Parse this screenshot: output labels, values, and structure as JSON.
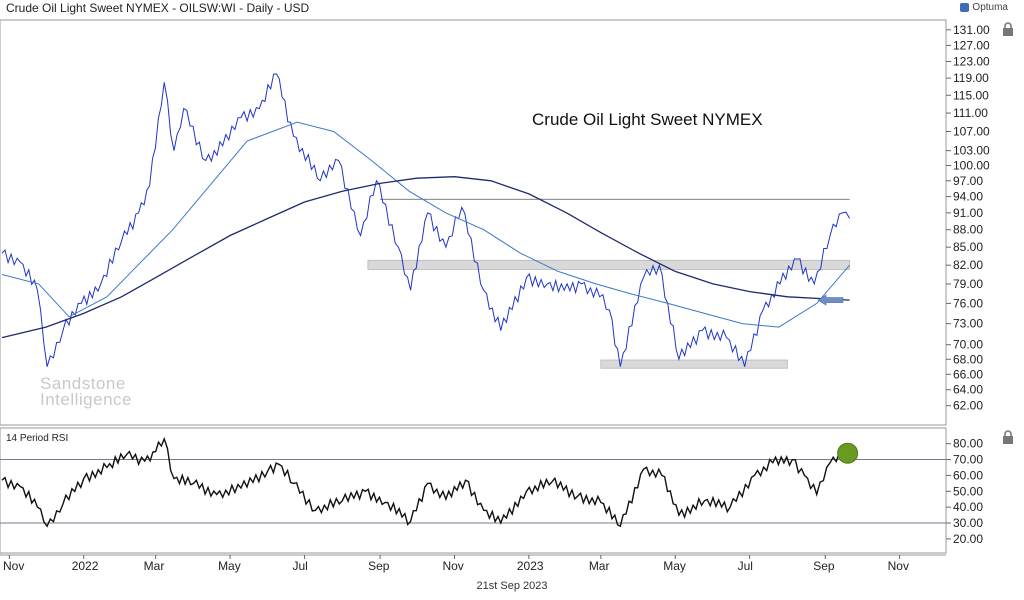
{
  "header": {
    "title": "Crude Oil Light Sweet NYMEX - OILSW:WI - Daily - USD",
    "brand": "Optuma"
  },
  "watermark": {
    "line1": "Sandstone",
    "line2": "Intelligence"
  },
  "footer": {
    "date": "21st Sep 2023"
  },
  "colors": {
    "price": "#1f35c8",
    "ma_fast": "#3d78c9",
    "ma_slow": "#1f2a6e",
    "zone": "#d9d9d9",
    "rsi": "#111111",
    "rsi_marker": "#6a9a1f",
    "arrow": "#6f8fc3"
  },
  "chart_data": [
    {
      "type": "line",
      "title": "Crude Oil Light Sweet NYMEX",
      "yaxis": {
        "range": [
          60.5,
          132
        ],
        "scale": "log",
        "ticks": [
          131,
          127,
          123,
          119,
          115,
          111,
          107,
          103,
          100,
          97,
          94,
          91,
          88,
          85,
          82,
          79,
          76,
          73,
          70,
          68,
          66,
          64,
          62
        ],
        "tick_labels": [
          "131.00",
          "127.00",
          "123.00",
          "119.00",
          "115.00",
          "111.00",
          "107.00",
          "103.00",
          "100.00",
          "97.00",
          "94.00",
          "91.00",
          "88.00",
          "85.00",
          "82.00",
          "79.00",
          "76.00",
          "73.00",
          "70.00",
          "68.00",
          "66.00",
          "64.00",
          "62.00"
        ]
      },
      "xaxis": {
        "labels": [
          "Nov",
          "2022",
          "Mar",
          "May",
          "Jul",
          "Sep",
          "Nov",
          "2023",
          "Mar",
          "May",
          "Jul",
          "Sep",
          "Nov"
        ],
        "label_dates": [
          "2021-11-01",
          "2022-01-01",
          "2022-03-01",
          "2022-05-01",
          "2022-07-01",
          "2022-09-01",
          "2022-11-01",
          "2023-01-01",
          "2023-03-01",
          "2023-05-01",
          "2023-07-01",
          "2023-09-01",
          "2023-11-01"
        ]
      },
      "series": [
        {
          "role": "price",
          "x": [
            "2021-10-26",
            "2021-11-10",
            "2021-11-24",
            "2021-12-02",
            "2021-12-15",
            "2021-12-30",
            "2022-01-15",
            "2022-02-01",
            "2022-02-15",
            "2022-02-24",
            "2022-03-08",
            "2022-03-16",
            "2022-03-24",
            "2022-04-11",
            "2022-04-25",
            "2022-05-10",
            "2022-05-25",
            "2022-06-08",
            "2022-06-22",
            "2022-07-14",
            "2022-07-29",
            "2022-08-16",
            "2022-08-29",
            "2022-09-16",
            "2022-09-26",
            "2022-10-10",
            "2022-10-25",
            "2022-11-07",
            "2022-11-25",
            "2022-12-09",
            "2022-12-30",
            "2023-01-16",
            "2023-01-30",
            "2023-02-13",
            "2023-02-28",
            "2023-03-08",
            "2023-03-17",
            "2023-04-05",
            "2023-04-18",
            "2023-05-04",
            "2023-05-23",
            "2023-06-12",
            "2023-06-27",
            "2023-07-12",
            "2023-07-26",
            "2023-08-09",
            "2023-08-23",
            "2023-09-05",
            "2023-09-15",
            "2023-09-21"
          ],
          "values": [
            84,
            82.5,
            78,
            67,
            72,
            76,
            79,
            86,
            91,
            96,
            118,
            103,
            112,
            101,
            104,
            110,
            112,
            120,
            106,
            97,
            101,
            87,
            97,
            85,
            78,
            91,
            85,
            92,
            78,
            72,
            80,
            79,
            78,
            79,
            77,
            75,
            67,
            80,
            82,
            68,
            72,
            71,
            67,
            75,
            79,
            83,
            79,
            87,
            91,
            90
          ]
        },
        {
          "role": "moving-average-short",
          "x": [
            "2021-10-26",
            "2021-11-25",
            "2021-12-20",
            "2022-01-20",
            "2022-03-15",
            "2022-05-15",
            "2022-06-25",
            "2022-07-25",
            "2022-08-25",
            "2022-09-25",
            "2022-10-25",
            "2022-11-25",
            "2022-12-25",
            "2023-01-25",
            "2023-02-25",
            "2023-03-25",
            "2023-04-25",
            "2023-05-25",
            "2023-06-25",
            "2023-07-25",
            "2023-08-25",
            "2023-09-21"
          ],
          "values": [
            80.5,
            79,
            74,
            77,
            88,
            105,
            109,
            107,
            101,
            95,
            91,
            88,
            84,
            81,
            79,
            77.5,
            76,
            74.5,
            73,
            72.5,
            76,
            82
          ]
        },
        {
          "role": "moving-average-long",
          "x": [
            "2021-10-26",
            "2021-12-01",
            "2022-01-01",
            "2022-02-01",
            "2022-03-01",
            "2022-04-01",
            "2022-05-01",
            "2022-06-01",
            "2022-07-01",
            "2022-08-01",
            "2022-09-01",
            "2022-10-01",
            "2022-11-01",
            "2022-12-01",
            "2023-01-01",
            "2023-02-01",
            "2023-03-01",
            "2023-04-01",
            "2023-05-01",
            "2023-06-01",
            "2023-07-01",
            "2023-08-01",
            "2023-09-21"
          ],
          "values": [
            71,
            72.5,
            74.5,
            77,
            80,
            83.5,
            87,
            90,
            93,
            95,
            96.5,
            97.5,
            97.8,
            97,
            94.5,
            91,
            87.5,
            84,
            81,
            79,
            77.8,
            77,
            76.5
          ]
        }
      ],
      "annotations": {
        "resistance_line": {
          "value": 93.5,
          "from": "2022-09-01",
          "to": "2023-09-21"
        },
        "zones": [
          {
            "low": 81.3,
            "high": 82.8,
            "from": "2022-08-22",
            "to": "2023-09-21"
          },
          {
            "low": 66.8,
            "high": 67.9,
            "from": "2023-03-01",
            "to": "2023-08-01"
          }
        ],
        "arrow_at_value": 76.5
      },
      "grid": false
    },
    {
      "type": "line",
      "title": "14 Period RSI",
      "yaxis": {
        "range": [
          13,
          88
        ],
        "ticks": [
          80,
          70,
          60,
          50,
          40,
          30,
          20
        ],
        "tick_labels": [
          "80.00",
          "70.00",
          "60.00",
          "50.00",
          "40.00",
          "30.00",
          "20.00"
        ]
      },
      "reference_lines": [
        70,
        30
      ],
      "series": [
        {
          "role": "rsi",
          "x": [
            "2021-10-26",
            "2021-11-10",
            "2021-11-24",
            "2021-12-02",
            "2021-12-15",
            "2022-01-01",
            "2022-01-20",
            "2022-02-05",
            "2022-02-20",
            "2022-03-01",
            "2022-03-08",
            "2022-03-16",
            "2022-04-01",
            "2022-04-20",
            "2022-05-10",
            "2022-06-01",
            "2022-06-10",
            "2022-06-22",
            "2022-07-10",
            "2022-08-01",
            "2022-08-20",
            "2022-09-05",
            "2022-09-26",
            "2022-10-10",
            "2022-10-25",
            "2022-11-10",
            "2022-11-25",
            "2022-12-09",
            "2022-12-30",
            "2023-01-20",
            "2023-02-10",
            "2023-03-01",
            "2023-03-17",
            "2023-04-05",
            "2023-04-20",
            "2023-05-04",
            "2023-05-25",
            "2023-06-15",
            "2023-07-05",
            "2023-07-20",
            "2023-08-05",
            "2023-08-15",
            "2023-08-25",
            "2023-09-05",
            "2023-09-15",
            "2023-09-21"
          ],
          "values": [
            57,
            53,
            40,
            28,
            42,
            58,
            65,
            73,
            69,
            75,
            83,
            58,
            55,
            48,
            52,
            63,
            67,
            55,
            38,
            44,
            50,
            43,
            31,
            55,
            45,
            57,
            38,
            30,
            50,
            56,
            47,
            43,
            28,
            64,
            60,
            35,
            44,
            40,
            60,
            68,
            70,
            60,
            48,
            68,
            75,
            74
          ]
        }
      ],
      "marker_value": 74
    }
  ]
}
